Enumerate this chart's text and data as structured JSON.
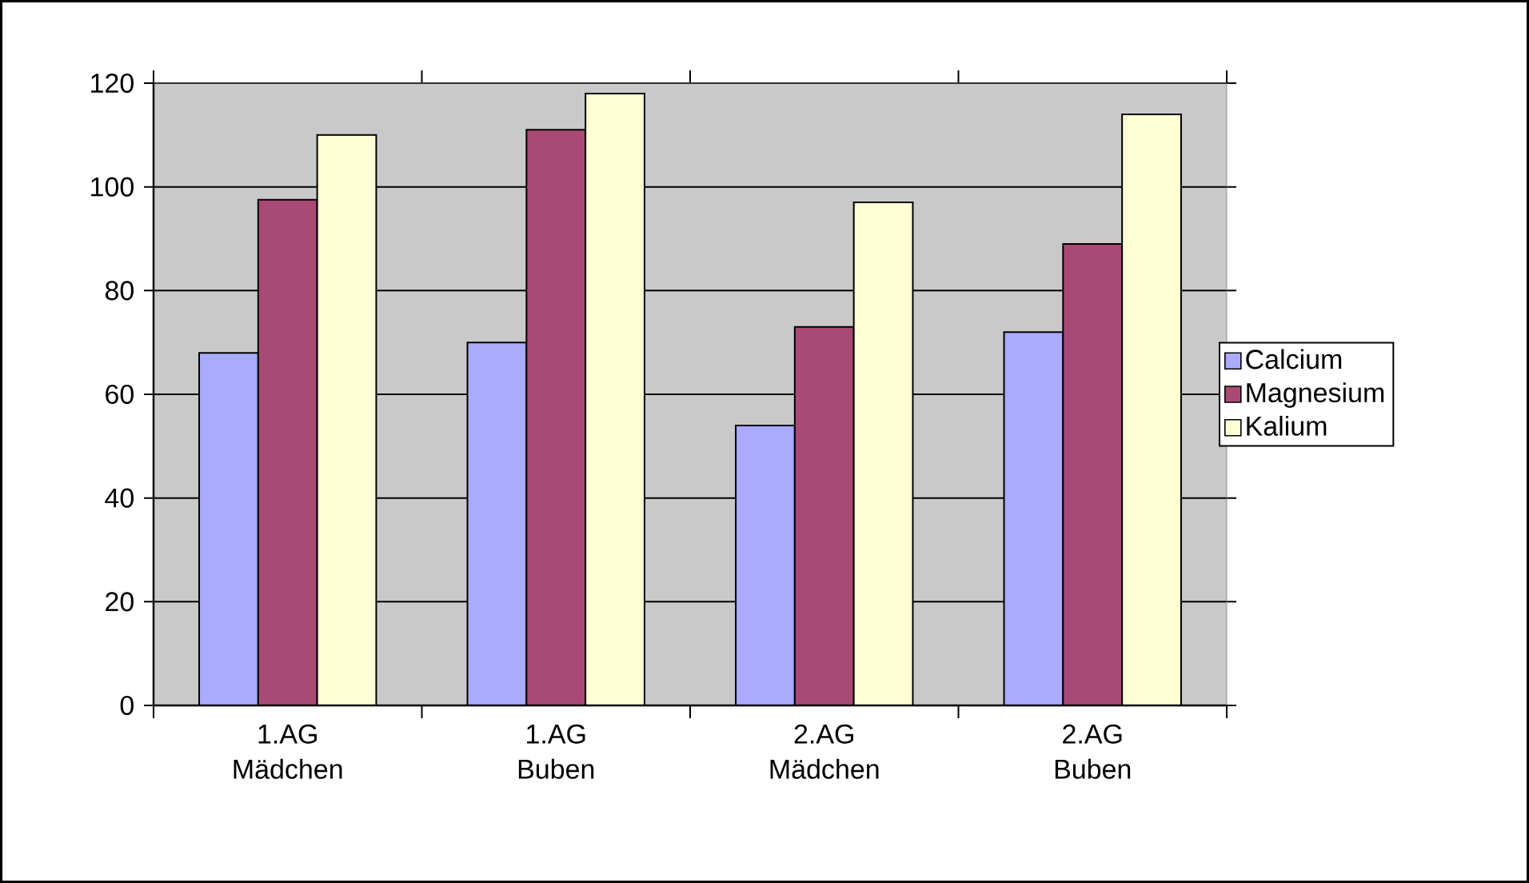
{
  "chart_data": {
    "type": "bar",
    "categories": [
      "1.AG Mädchen",
      "1.AG Buben",
      "2.AG Mädchen",
      "2.AG Buben"
    ],
    "series": [
      {
        "name": "Calcium",
        "color": "#aaaaff",
        "values": [
          68,
          70,
          54,
          72
        ]
      },
      {
        "name": "Magnesium",
        "color": "#a94a75",
        "values": [
          97.5,
          111,
          73,
          89
        ]
      },
      {
        "name": "Kalium",
        "color": "#ffffd6",
        "values": [
          110,
          118,
          97,
          114
        ]
      }
    ],
    "ylim": [
      0,
      120
    ],
    "yticks": [
      0,
      20,
      40,
      60,
      80,
      100,
      120
    ],
    "grid": "y",
    "legend": "right"
  }
}
